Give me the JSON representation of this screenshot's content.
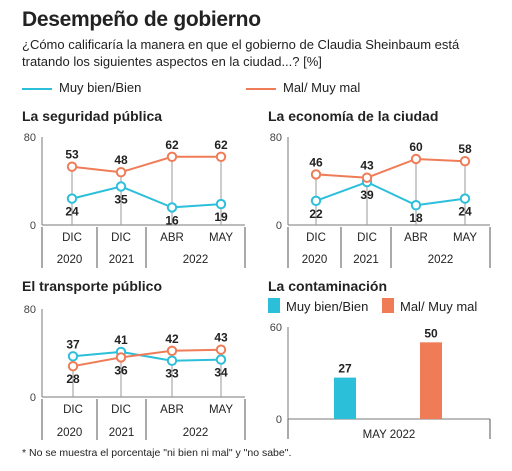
{
  "header": {
    "title": "Desempeño de gobierno",
    "subtitle": "¿Cómo calificaría la manera en que el gobierno de Claudia Sheinbaum está tratando los siguientes aspectos en la ciudad...? [%]"
  },
  "legend": {
    "good_label": "Muy bien/Bien",
    "bad_label": "Mal/ Muy mal"
  },
  "colors": {
    "good": "#2bbfda",
    "bad": "#ef7c57",
    "axis": "#7a7a7a"
  },
  "note": "* No se muestra el porcentaje \"ni bien ni mal\" y \"no sabe\".",
  "chart_data": [
    {
      "type": "line",
      "title": "La seguridad pública",
      "categories": [
        "DIC",
        "DIC",
        "ABR",
        "MAY"
      ],
      "year_labels": [
        "2020",
        "2021",
        "2022"
      ],
      "ylim": [
        0,
        80
      ],
      "yticks": [
        0,
        80
      ],
      "series": [
        {
          "name": "Muy bien/Bien",
          "values": [
            24,
            35,
            16,
            19
          ]
        },
        {
          "name": "Mal/ Muy mal",
          "values": [
            53,
            48,
            62,
            62
          ]
        }
      ]
    },
    {
      "type": "line",
      "title": "La economía de la ciudad",
      "categories": [
        "DIC",
        "DIC",
        "ABR",
        "MAY"
      ],
      "year_labels": [
        "2020",
        "2021",
        "2022"
      ],
      "ylim": [
        0,
        80
      ],
      "yticks": [
        0,
        80
      ],
      "series": [
        {
          "name": "Muy bien/Bien",
          "values": [
            22,
            39,
            18,
            24
          ]
        },
        {
          "name": "Mal/ Muy mal",
          "values": [
            46,
            43,
            60,
            58
          ]
        }
      ]
    },
    {
      "type": "line",
      "title": "El transporte público",
      "categories": [
        "DIC",
        "DIC",
        "ABR",
        "MAY"
      ],
      "year_labels": [
        "2020",
        "2021",
        "2022"
      ],
      "ylim": [
        0,
        80
      ],
      "yticks": [
        0,
        80
      ],
      "series": [
        {
          "name": "Muy bien/Bien",
          "values": [
            37,
            41,
            33,
            34
          ]
        },
        {
          "name": "Mal/ Muy mal",
          "values": [
            28,
            36,
            42,
            43
          ]
        }
      ]
    },
    {
      "type": "bar",
      "title": "La contaminación",
      "categories": [
        "MAY 2022"
      ],
      "ylim": [
        0,
        60
      ],
      "yticks": [
        0,
        60
      ],
      "series": [
        {
          "name": "Muy bien/Bien",
          "values": [
            27
          ]
        },
        {
          "name": "Mal/ Muy mal",
          "values": [
            50
          ]
        }
      ]
    }
  ]
}
